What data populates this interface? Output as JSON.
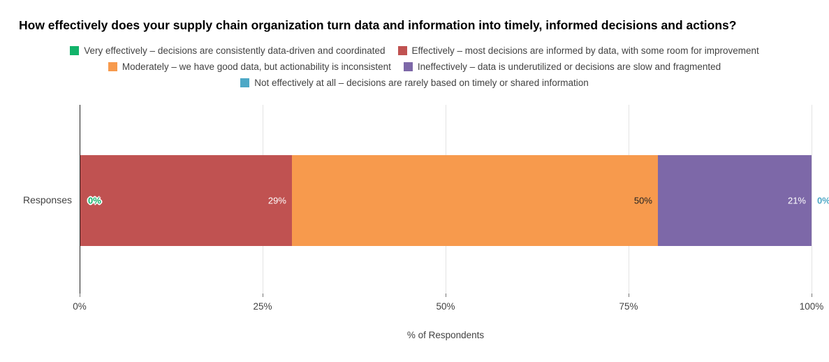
{
  "chart_data": {
    "type": "bar",
    "orientation": "horizontal-stacked",
    "title": "How effectively does your supply chain organization turn data and information into timely, informed decisions and actions?",
    "categories": [
      "Responses"
    ],
    "xlabel": "% of Respondents",
    "xlim": [
      0,
      100
    ],
    "grid": true,
    "legend_position": "top",
    "x_ticks": [
      {
        "value": 0,
        "label": "0%"
      },
      {
        "value": 25,
        "label": "25%"
      },
      {
        "value": 50,
        "label": "50%"
      },
      {
        "value": 75,
        "label": "75%"
      },
      {
        "value": 100,
        "label": "100%"
      }
    ],
    "series": [
      {
        "name": "Very effectively – decisions are consistently data-driven and coordinated",
        "value": 0,
        "color": "#12b36a",
        "label": "0%",
        "label_color": "#12b36a",
        "label_halo": true
      },
      {
        "name": "Effectively – most decisions are informed by data, with some room for improvement",
        "value": 29,
        "color": "#c05251",
        "label": "29%",
        "label_color": "#ffffff",
        "label_halo": false
      },
      {
        "name": "Moderately – we have good data, but actionability is inconsistent",
        "value": 50,
        "color": "#f79a4d",
        "label": "50%",
        "label_color": "#212121",
        "label_halo": false
      },
      {
        "name": "Ineffectively – data is underutilized or decisions are slow and fragmented",
        "value": 21,
        "color": "#7d68a8",
        "label": "21%",
        "label_color": "#ffffff",
        "label_halo": false
      },
      {
        "name": "Not effectively at all – decisions are rarely based on timely or shared information",
        "value": 0,
        "color": "#4da8c6",
        "label": "0%",
        "label_color": "#4da8c6",
        "label_halo": true
      }
    ]
  }
}
